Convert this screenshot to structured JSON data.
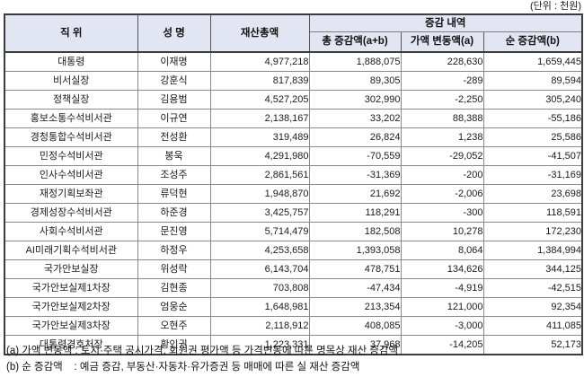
{
  "unit_label": "(단위 : 천원)",
  "colors": {
    "header_bg": "#e2e6f3",
    "border_dark": "#3c3c3c",
    "border_light": "#808080"
  },
  "table": {
    "headers": {
      "position": "직 위",
      "name": "성 명",
      "total_assets": "재산총액",
      "change_group": "증감 내역",
      "total_change": "총 증감액(a+b)",
      "value_change": "가액 변동액(a)",
      "net_change": "순 증감액(b)"
    },
    "rows": [
      {
        "position": "대통령",
        "name": "이재명",
        "total": "4,977,218",
        "total_change": "1,888,075",
        "value_change": "228,630",
        "net_change": "1,659,445"
      },
      {
        "position": "비서실장",
        "name": "강훈식",
        "total": "817,839",
        "total_change": "89,305",
        "value_change": "-289",
        "net_change": "89,594"
      },
      {
        "position": "정책실장",
        "name": "김용범",
        "total": "4,527,205",
        "total_change": "302,990",
        "value_change": "-2,250",
        "net_change": "305,240"
      },
      {
        "position": "홍보소통수석비서관",
        "name": "이규연",
        "total": "2,138,167",
        "total_change": "33,202",
        "value_change": "88,388",
        "net_change": "-55,186"
      },
      {
        "position": "경청통합수석비서관",
        "name": "전성환",
        "total": "319,489",
        "total_change": "26,824",
        "value_change": "1,238",
        "net_change": "25,586"
      },
      {
        "position": "민정수석비서관",
        "name": "봉욱",
        "total": "4,291,980",
        "total_change": "-70,559",
        "value_change": "-29,052",
        "net_change": "-41,507"
      },
      {
        "position": "인사수석비서관",
        "name": "조성주",
        "total": "2,861,561",
        "total_change": "-31,369",
        "value_change": "-200",
        "net_change": "-31,169"
      },
      {
        "position": "재정기획보좌관",
        "name": "류덕현",
        "total": "1,948,870",
        "total_change": "21,692",
        "value_change": "-2,006",
        "net_change": "23,698"
      },
      {
        "position": "경제성장수석비서관",
        "name": "하준경",
        "total": "3,425,757",
        "total_change": "118,291",
        "value_change": "-300",
        "net_change": "118,591"
      },
      {
        "position": "사회수석비서관",
        "name": "문진영",
        "total": "5,714,479",
        "total_change": "182,508",
        "value_change": "10,278",
        "net_change": "172,230"
      },
      {
        "position": "AI미래기획수석비서관",
        "name": "하정우",
        "total": "4,253,658",
        "total_change": "1,393,058",
        "value_change": "8,064",
        "net_change": "1,384,994"
      },
      {
        "position": "국가안보실장",
        "name": "위성락",
        "total": "6,143,704",
        "total_change": "478,751",
        "value_change": "134,626",
        "net_change": "344,125"
      },
      {
        "position": "국가안보실제1차장",
        "name": "김현종",
        "total": "703,808",
        "total_change": "-47,434",
        "value_change": "-4,919",
        "net_change": "-42,515"
      },
      {
        "position": "국가안보실제2차장",
        "name": "엄웅순",
        "total": "1,648,981",
        "total_change": "213,354",
        "value_change": "121,000",
        "net_change": "92,354"
      },
      {
        "position": "국가안보실제3차장",
        "name": "오현주",
        "total": "2,118,912",
        "total_change": "408,085",
        "value_change": "-3,000",
        "net_change": "411,085"
      },
      {
        "position": "대통령경호처장",
        "name": "황인권",
        "total": "1,223,331",
        "total_change": "37,968",
        "value_change": "-14,205",
        "net_change": "52,173"
      }
    ]
  },
  "footnotes": [
    "(a) 가액 변동액 : 토지·주택 공시가격, 회원권 평가액 등 가격변동에 따른 명목상 재산 증감액",
    "(b) 순 증감액    : 예금 증감, 부동산·자동차·유가증권 등 매매에 따른 실 재산 증감액"
  ],
  "chart_data": {
    "type": "table",
    "title": "증감 내역",
    "unit": "천원",
    "columns": [
      "직위",
      "성명",
      "재산총액",
      "총 증감액(a+b)",
      "가액 변동액(a)",
      "순 증감액(b)"
    ],
    "rows": [
      [
        "대통령",
        "이재명",
        4977218,
        1888075,
        228630,
        1659445
      ],
      [
        "비서실장",
        "강훈식",
        817839,
        89305,
        -289,
        89594
      ],
      [
        "정책실장",
        "김용범",
        4527205,
        302990,
        -2250,
        305240
      ],
      [
        "홍보소통수석비서관",
        "이규연",
        2138167,
        33202,
        88388,
        -55186
      ],
      [
        "경청통합수석비서관",
        "전성환",
        319489,
        26824,
        1238,
        25586
      ],
      [
        "민정수석비서관",
        "봉욱",
        4291980,
        -70559,
        -29052,
        -41507
      ],
      [
        "인사수석비서관",
        "조성주",
        2861561,
        -31369,
        -200,
        -31169
      ],
      [
        "재정기획보좌관",
        "류덕현",
        1948870,
        21692,
        -2006,
        23698
      ],
      [
        "경제성장수석비서관",
        "하준경",
        3425757,
        118291,
        -300,
        118591
      ],
      [
        "사회수석비서관",
        "문진영",
        5714479,
        182508,
        10278,
        172230
      ],
      [
        "AI미래기획수석비서관",
        "하정우",
        4253658,
        1393058,
        8064,
        1384994
      ],
      [
        "국가안보실장",
        "위성락",
        6143704,
        478751,
        134626,
        344125
      ],
      [
        "국가안보실제1차장",
        "김현종",
        703808,
        -47434,
        -4919,
        -42515
      ],
      [
        "국가안보실제2차장",
        "엄웅순",
        1648981,
        213354,
        121000,
        92354
      ],
      [
        "국가안보실제3차장",
        "오현주",
        2118912,
        408085,
        -3000,
        411085
      ],
      [
        "대통령경호처장",
        "황인권",
        1223331,
        37968,
        -14205,
        52173
      ]
    ]
  }
}
